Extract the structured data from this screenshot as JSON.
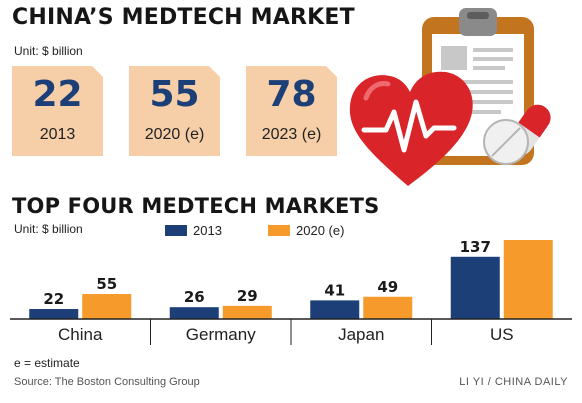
{
  "header": {
    "title": "CHINA’S MEDTECH MARKET",
    "unit": "Unit: $ billion"
  },
  "stats": [
    {
      "value": "22",
      "label": "2013"
    },
    {
      "value": "55",
      "label": "2020 (e)"
    },
    {
      "value": "78",
      "label": "2023 (e)"
    }
  ],
  "colors": {
    "series_2013": "#1c3f78",
    "series_2020": "#f59a2b",
    "card_bg": "#f6cfa8",
    "heart": "#d9252a"
  },
  "chart_data": {
    "type": "bar",
    "title": "TOP FOUR MEDTECH MARKETS",
    "unit": "Unit: $ billion",
    "categories": [
      "China",
      "Germany",
      "Japan",
      "US"
    ],
    "series": [
      {
        "name": "2013",
        "values": [
          22,
          26,
          41,
          137
        ]
      },
      {
        "name": "2020 (e)",
        "values": [
          55,
          29,
          49,
          174
        ]
      }
    ],
    "ylim": [
      0,
      174
    ],
    "legend_position": "top-center",
    "grid": false
  },
  "footer": {
    "note": "e = estimate",
    "source": "Source: The Boston Consulting Group",
    "credit": "LI YI / CHINA DAILY"
  },
  "illustration": {
    "icons": [
      "clipboard-icon",
      "heart-icon",
      "heartbeat-icon",
      "pill-icon",
      "tablet-icon"
    ]
  }
}
